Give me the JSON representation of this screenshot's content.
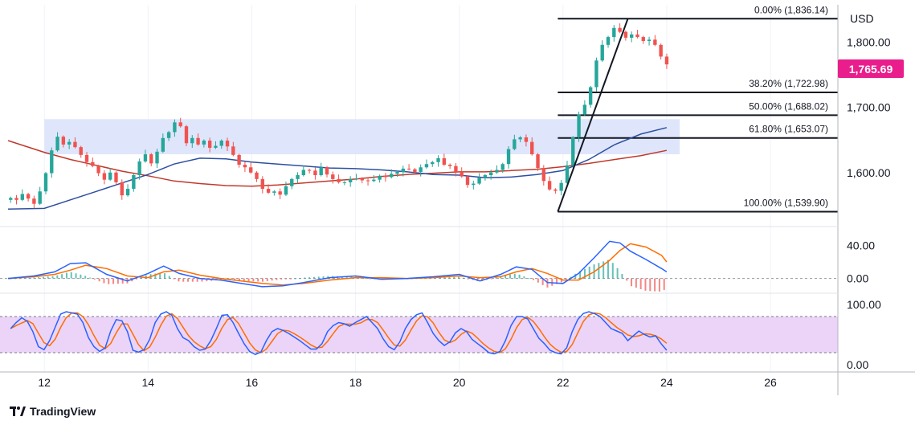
{
  "chart_data": {
    "type": "candlestick",
    "currency_label": "USD",
    "current_price_label": "1,765.69",
    "colors": {
      "up": "#26a69a",
      "down": "#ef5350",
      "current_price_tag": "#e91e8c",
      "ma_fast": "#2c4fa0",
      "ma_slow": "#c0392b",
      "zone_fill": "#dbe3fb",
      "stoch_band_fill": "#e7ccf7",
      "macd_line": "#2962ff",
      "signal_line": "#ff6d00"
    },
    "x_axis": {
      "tick_labels": [
        "12",
        "14",
        "16",
        "18",
        "20",
        "22",
        "24",
        "26"
      ],
      "range": [
        11.3,
        27.3
      ]
    },
    "price_panel": {
      "y_range": [
        1522,
        1855
      ],
      "tick_labels": [
        {
          "value": 1800,
          "label": "1,800.00"
        },
        {
          "value": 1700,
          "label": "1,700.00"
        },
        {
          "value": 1600,
          "label": "1,600.00"
        }
      ],
      "fibonacci": {
        "start_x": 21.9,
        "end_x": 23.25,
        "line_end_x": 27.3,
        "levels": [
          {
            "value": 1836.14,
            "label": "0.00% (1,836.14)"
          },
          {
            "value": 1722.98,
            "label": "38.20% (1,722.98)"
          },
          {
            "value": 1688.02,
            "label": "50.00% (1,688.02)"
          },
          {
            "value": 1653.07,
            "label": "61.80% (1,653.07)"
          },
          {
            "value": 1539.9,
            "label": "100.00% (1,539.90)"
          }
        ]
      },
      "resistance_zone": {
        "x_from": 12.0,
        "x_to": 24.25,
        "y_from": 1628,
        "y_to": 1682
      },
      "close": [
        1561,
        1558,
        1567,
        1560,
        1552,
        1571,
        1599,
        1634,
        1655,
        1643,
        1647,
        1639,
        1627,
        1616,
        1610,
        1599,
        1589,
        1600,
        1585,
        1565,
        1575,
        1596,
        1617,
        1628,
        1614,
        1632,
        1653,
        1662,
        1677,
        1671,
        1645,
        1653,
        1643,
        1649,
        1638,
        1641,
        1649,
        1640,
        1627,
        1612,
        1608,
        1600,
        1590,
        1575,
        1569,
        1571,
        1566,
        1579,
        1590,
        1596,
        1604,
        1603,
        1596,
        1608,
        1597,
        1590,
        1585,
        1585,
        1590,
        1591,
        1588,
        1587,
        1589,
        1595,
        1593,
        1598,
        1601,
        1606,
        1605,
        1601,
        1608,
        1613,
        1616,
        1622,
        1612,
        1610,
        1601,
        1594,
        1581,
        1583,
        1592,
        1596,
        1600,
        1604,
        1613,
        1636,
        1651,
        1654,
        1647,
        1628,
        1607,
        1587,
        1574,
        1572,
        1584,
        1611,
        1654,
        1689,
        1704,
        1731,
        1772,
        1796,
        1808,
        1822,
        1816,
        1807,
        1812,
        1808,
        1802,
        1804,
        1796,
        1778,
        1766
      ],
      "ma_fast": {
        "x": [
          11.3,
          12,
          12.5,
          13,
          13.5,
          14,
          14.5,
          15,
          15.5,
          16,
          16.5,
          17,
          17.5,
          18,
          18.5,
          19,
          19.5,
          20,
          20.5,
          21,
          21.5,
          22,
          22.5,
          23,
          23.5,
          24
        ],
        "y": [
          1544,
          1545,
          1558,
          1571,
          1584,
          1597,
          1613,
          1622,
          1621,
          1616,
          1613,
          1610,
          1607,
          1606,
          1604,
          1601,
          1597,
          1596,
          1592,
          1593,
          1597,
          1603,
          1620,
          1643,
          1659,
          1669
        ]
      },
      "ma_slow": {
        "x": [
          11.3,
          12,
          12.5,
          13,
          13.5,
          14,
          14.5,
          15,
          15.5,
          16,
          16.5,
          17,
          17.5,
          18,
          18.5,
          19,
          19.5,
          20,
          20.5,
          21,
          21.5,
          22,
          22.5,
          23,
          23.5,
          24
        ],
        "y": [
          1649,
          1631,
          1620,
          1611,
          1602,
          1595,
          1587,
          1583,
          1580,
          1579,
          1581,
          1584,
          1587,
          1590,
          1594,
          1597,
          1599,
          1601,
          1601,
          1603,
          1605,
          1609,
          1614,
          1620,
          1626,
          1634
        ]
      }
    },
    "macd_panel": {
      "y_range": [
        -15,
        58
      ],
      "tick_labels": [
        {
          "value": 40,
          "label": "40.00"
        },
        {
          "value": 0,
          "label": "0.00"
        }
      ],
      "macd": {
        "x": [
          11.3,
          11.8,
          12.2,
          12.5,
          12.8,
          13.2,
          13.6,
          14,
          14.3,
          14.6,
          15,
          15.4,
          15.8,
          16.2,
          16.6,
          17,
          17.5,
          18,
          18.5,
          19,
          19.5,
          20,
          20.4,
          20.8,
          21.1,
          21.4,
          21.7,
          22,
          22.3,
          22.6,
          22.9,
          23.1,
          23.3,
          23.6,
          23.9,
          24
        ],
        "y": [
          0,
          3,
          8,
          18,
          19,
          5,
          -3,
          6,
          15,
          6,
          0,
          -2,
          -6,
          -10,
          -9,
          -5,
          1,
          3,
          -1,
          0,
          2,
          5,
          -3,
          5,
          14,
          11,
          -5,
          -6,
          6,
          25,
          45,
          43,
          33,
          23,
          12,
          8
        ]
      },
      "signal": {
        "x": [
          11.3,
          11.8,
          12.2,
          12.5,
          12.8,
          13.2,
          13.6,
          14,
          14.3,
          14.6,
          15,
          15.4,
          15.8,
          16.2,
          16.6,
          17,
          17.5,
          18,
          18.5,
          19,
          19.5,
          20,
          20.4,
          20.8,
          21.1,
          21.4,
          21.7,
          22,
          22.3,
          22.6,
          22.9,
          23.1,
          23.3,
          23.6,
          23.9,
          24
        ],
        "y": [
          0,
          2,
          5,
          10,
          16,
          12,
          3,
          1,
          8,
          10,
          4,
          0,
          -3,
          -6,
          -8,
          -6,
          -2,
          1,
          1,
          0,
          1,
          3,
          1,
          2,
          8,
          12,
          6,
          -2,
          -2,
          8,
          22,
          34,
          42,
          38,
          28,
          20
        ]
      }
    },
    "stoch_panel": {
      "y_range": [
        -8,
        112
      ],
      "tick_labels": [
        {
          "value": 100,
          "label": "100.00"
        },
        {
          "value": 0,
          "label": "0.00"
        }
      ],
      "band": {
        "upper": 80,
        "lower": 20
      },
      "k": [
        60,
        70,
        78,
        72,
        55,
        30,
        25,
        40,
        62,
        84,
        88,
        86,
        84,
        70,
        45,
        30,
        22,
        28,
        56,
        75,
        73,
        55,
        24,
        21,
        25,
        42,
        70,
        84,
        88,
        82,
        60,
        45,
        40,
        30,
        24,
        26,
        40,
        60,
        82,
        83,
        70,
        52,
        35,
        22,
        17,
        21,
        40,
        55,
        60,
        57,
        52,
        46,
        40,
        33,
        26,
        26,
        35,
        55,
        65,
        70,
        68,
        64,
        70,
        75,
        80,
        70,
        60,
        43,
        30,
        25,
        38,
        60,
        75,
        83,
        86,
        70,
        52,
        40,
        32,
        38,
        53,
        60,
        55,
        42,
        35,
        28,
        20,
        18,
        22,
        40,
        65,
        80,
        80,
        76,
        60,
        44,
        35,
        24,
        20,
        18,
        28,
        55,
        75,
        85,
        88,
        85,
        80,
        70,
        60,
        56,
        52,
        40,
        48,
        56,
        50,
        46,
        48,
        35,
        24
      ]
    }
  }
}
